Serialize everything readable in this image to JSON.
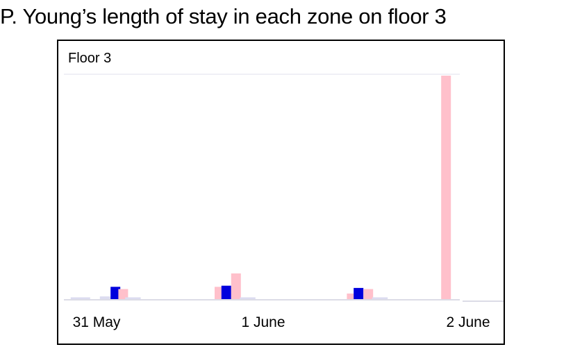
{
  "title": "P. Young’s length of stay in each zone on floor 3",
  "colors": {
    "frame": "#000000",
    "gridline": "#ececf4",
    "axis": "#dcdce6",
    "series_a": "#dcdcf0",
    "series_b": "#0000dd",
    "series_c": "#ffc0cb"
  },
  "chart_data": {
    "type": "bar",
    "title": "P. Young’s length of stay in each zone on floor 3",
    "panel_label": "Floor 3",
    "xlabel": "",
    "ylabel": "",
    "grid": true,
    "legend": "none",
    "x_ticks": [
      "31 May",
      "1 June",
      "2 June"
    ],
    "x_range": [
      0,
      2
    ],
    "ylim": [
      0,
      100
    ],
    "bars": [
      {
        "x": 0.06,
        "y": 0.8,
        "color": "series_a",
        "width": 0.1
      },
      {
        "x": 0.2,
        "y": 1.2,
        "color": "series_a",
        "width": 0.08
      },
      {
        "x": 0.24,
        "y": 5.5,
        "color": "series_b",
        "width": 0.05
      },
      {
        "x": 0.28,
        "y": 4.5,
        "color": "series_c",
        "width": 0.05
      },
      {
        "x": 0.33,
        "y": 0.8,
        "color": "series_a",
        "width": 0.08
      },
      {
        "x": 0.77,
        "y": 5.5,
        "color": "series_c",
        "width": 0.04
      },
      {
        "x": 0.81,
        "y": 6.0,
        "color": "series_b",
        "width": 0.05
      },
      {
        "x": 0.86,
        "y": 11.5,
        "color": "series_c",
        "width": 0.05
      },
      {
        "x": 0.92,
        "y": 0.8,
        "color": "series_a",
        "width": 0.08
      },
      {
        "x": 1.45,
        "y": 2.5,
        "color": "series_c",
        "width": 0.04
      },
      {
        "x": 1.49,
        "y": 5.0,
        "color": "series_b",
        "width": 0.05
      },
      {
        "x": 1.54,
        "y": 4.5,
        "color": "series_c",
        "width": 0.05
      },
      {
        "x": 1.6,
        "y": 0.8,
        "color": "series_a",
        "width": 0.08
      },
      {
        "x": 1.94,
        "y": 100,
        "color": "series_c",
        "width": 0.05
      }
    ]
  }
}
